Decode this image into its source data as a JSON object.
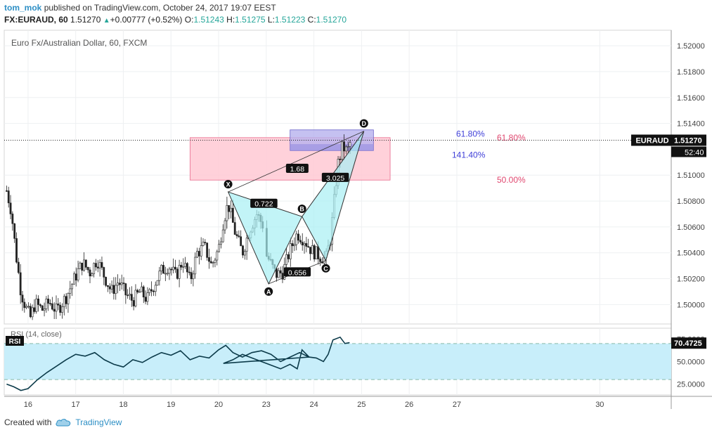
{
  "header": {
    "author": "tom_mok",
    "published_text": "published on TradingView.com, October 24, 2017 19:07 EEST",
    "symbol": "FX:EURAUD, 60",
    "last": "1.51270",
    "change": "+0.00777 (+0.52%)",
    "o_label": "O:",
    "o_value": "1.51243",
    "h_label": "H:",
    "h_value": "1.51275",
    "l_label": "L:",
    "l_value": "1.51223",
    "c_label": "C:",
    "c_value": "1.51270"
  },
  "footer": {
    "created_with": "Created with",
    "brand": "TradingView"
  },
  "colors": {
    "up": "#26a69a",
    "accent": "#2d8fc5",
    "pattern_fill": "#a8f0f4",
    "pink_zone": "#ffc9d4",
    "purple_zone": "#b7b2ee",
    "fib_pink": "#e0476f",
    "fib_blue": "#3f3fd8",
    "rsi_band": "#c8eefa"
  },
  "chart_data": {
    "type": "candlestick",
    "title": "Euro Fx/Australian Dollar, 60, FXCM",
    "price_axis": {
      "range": [
        1.4985,
        1.5212
      ],
      "ticks": [
        "1.52000",
        "1.51800",
        "1.51600",
        "1.51400",
        "1.51270",
        "1.51000",
        "1.50800",
        "1.50600",
        "1.50400",
        "1.50200",
        "1.50000"
      ]
    },
    "time_axis": {
      "range_days": [
        15.5,
        31.5
      ],
      "ticks": [
        {
          "x": 16,
          "label": "16"
        },
        {
          "x": 17,
          "label": "17"
        },
        {
          "x": 18,
          "label": "18"
        },
        {
          "x": 19,
          "label": "19"
        },
        {
          "x": 20,
          "label": "20"
        },
        {
          "x": 23,
          "label": "23"
        },
        {
          "x": 24,
          "label": "24"
        },
        {
          "x": 25,
          "label": "25"
        },
        {
          "x": 26,
          "label": "26"
        },
        {
          "x": 27,
          "label": "27"
        },
        {
          "x": 30,
          "label": "30"
        }
      ]
    },
    "current_price": {
      "label": "EURAUD",
      "value": "1.51270",
      "countdown": "52:40"
    },
    "price_series": [
      [
        15.55,
        1.5088
      ],
      [
        15.65,
        1.5072
      ],
      [
        15.75,
        1.5038
      ],
      [
        15.85,
        1.501
      ],
      [
        15.95,
        1.4998
      ],
      [
        16.05,
        1.499
      ],
      [
        16.15,
        1.5001
      ],
      [
        16.3,
        1.4996
      ],
      [
        16.45,
        1.5002
      ],
      [
        16.6,
        1.4995
      ],
      [
        16.8,
        1.5006
      ],
      [
        16.95,
        1.5018
      ],
      [
        17.05,
        1.5026
      ],
      [
        17.15,
        1.5032
      ],
      [
        17.3,
        1.5025
      ],
      [
        17.45,
        1.5035
      ],
      [
        17.6,
        1.5022
      ],
      [
        17.75,
        1.501
      ],
      [
        17.9,
        1.5018
      ],
      [
        18.05,
        1.5008
      ],
      [
        18.2,
        1.5003
      ],
      [
        18.35,
        1.501
      ],
      [
        18.5,
        1.5004
      ],
      [
        18.65,
        1.5016
      ],
      [
        18.8,
        1.5026
      ],
      [
        18.95,
        1.503
      ],
      [
        19.1,
        1.5022
      ],
      [
        19.25,
        1.5034
      ],
      [
        19.4,
        1.5018
      ],
      [
        19.55,
        1.504
      ],
      [
        19.7,
        1.5045
      ],
      [
        19.85,
        1.503
      ],
      [
        20.0,
        1.5043
      ],
      [
        20.1,
        1.5065
      ],
      [
        20.2,
        1.5078
      ],
      [
        20.35,
        1.5055
      ],
      [
        20.5,
        1.504
      ],
      [
        20.65,
        1.5058
      ],
      [
        20.8,
        1.507
      ],
      [
        20.95,
        1.506
      ],
      [
        21.1,
        1.505
      ],
      [
        21.25,
        1.504
      ],
      [
        21.4,
        1.5027
      ],
      [
        21.55,
        1.5036
      ],
      [
        21.7,
        1.504
      ],
      [
        21.85,
        1.505
      ],
      [
        22.0,
        1.5062
      ],
      [
        22.15,
        1.5056
      ],
      [
        22.3,
        1.5042
      ],
      [
        22.45,
        1.505
      ],
      [
        22.6,
        1.504
      ],
      [
        22.75,
        1.5033
      ],
      [
        22.9,
        1.5045
      ],
      [
        23.05,
        1.5035
      ],
      [
        23.2,
        1.5023
      ],
      [
        23.35,
        1.5025
      ],
      [
        23.5,
        1.5042
      ],
      [
        23.65,
        1.5055
      ],
      [
        23.8,
        1.505
      ],
      [
        23.95,
        1.5042
      ],
      [
        24.1,
        1.5038
      ],
      [
        24.25,
        1.5035
      ],
      [
        24.35,
        1.5052
      ],
      [
        24.42,
        1.5078
      ],
      [
        24.5,
        1.5108
      ],
      [
        24.6,
        1.5122
      ],
      [
        24.7,
        1.5118
      ],
      [
        24.78,
        1.5127
      ]
    ],
    "harmonic_pattern": {
      "points": [
        {
          "label": "X",
          "x": 20.2,
          "y": 1.5087
        },
        {
          "label": "A",
          "x": 23.05,
          "y": 1.5016
        },
        {
          "label": "B",
          "x": 23.75,
          "y": 1.5068
        },
        {
          "label": "C",
          "x": 24.25,
          "y": 1.5034
        },
        {
          "label": "D",
          "x": 25.05,
          "y": 1.5134
        }
      ],
      "ratios": [
        {
          "text": "0.722",
          "x": 22.95,
          "y": 1.5078
        },
        {
          "text": "0.656",
          "x": 23.65,
          "y": 1.5025
        },
        {
          "text": "1.68",
          "x": 23.65,
          "y": 1.5105
        },
        {
          "text": "3.025",
          "x": 24.45,
          "y": 1.5098
        }
      ]
    },
    "zones": [
      {
        "name": "pink",
        "x": [
          19.4,
          25.6
        ],
        "y": [
          1.50962,
          1.5129
        ],
        "levels": [
          {
            "text": "61.80%",
            "y": 1.5129
          },
          {
            "text": "50.00%",
            "y": 1.50962
          }
        ]
      },
      {
        "name": "purple",
        "x": [
          23.5,
          25.25
        ],
        "y": [
          1.5119,
          1.5135
        ],
        "levels": [
          {
            "text": "61.80%",
            "y": 1.5132
          },
          {
            "text": "141.40%",
            "y": 1.51155
          }
        ]
      }
    ],
    "rsi": {
      "label": "RSI (14, close)",
      "tag": "RSI",
      "value": "70.4725",
      "range": [
        13,
        87
      ],
      "ticks": [
        "75.0000",
        "50.0000",
        "25.0000"
      ],
      "band": [
        30,
        70
      ],
      "series": [
        [
          15.55,
          25
        ],
        [
          15.7,
          22
        ],
        [
          15.85,
          18
        ],
        [
          16.0,
          20
        ],
        [
          16.2,
          30
        ],
        [
          16.4,
          38
        ],
        [
          16.6,
          45
        ],
        [
          16.8,
          52
        ],
        [
          17.0,
          58
        ],
        [
          17.2,
          56
        ],
        [
          17.4,
          60
        ],
        [
          17.6,
          52
        ],
        [
          17.8,
          47
        ],
        [
          18.0,
          44
        ],
        [
          18.2,
          52
        ],
        [
          18.4,
          49
        ],
        [
          18.6,
          55
        ],
        [
          18.8,
          60
        ],
        [
          19.0,
          57
        ],
        [
          19.2,
          62
        ],
        [
          19.4,
          52
        ],
        [
          19.6,
          56
        ],
        [
          19.8,
          54
        ],
        [
          20.0,
          63
        ],
        [
          20.15,
          68
        ],
        [
          20.3,
          60
        ],
        [
          20.5,
          55
        ],
        [
          20.7,
          60
        ],
        [
          20.9,
          62
        ],
        [
          21.1,
          58
        ],
        [
          21.3,
          50
        ],
        [
          21.5,
          55
        ],
        [
          21.7,
          60
        ],
        [
          21.9,
          55
        ],
        [
          22.1,
          48
        ],
        [
          22.3,
          52
        ],
        [
          22.5,
          58
        ],
        [
          22.7,
          54
        ],
        [
          22.9,
          50
        ],
        [
          23.1,
          46
        ],
        [
          23.3,
          42
        ],
        [
          23.5,
          47
        ],
        [
          23.65,
          42
        ],
        [
          23.75,
          63
        ],
        [
          23.9,
          55
        ],
        [
          24.05,
          54
        ],
        [
          24.2,
          50
        ],
        [
          24.3,
          58
        ],
        [
          24.4,
          74
        ],
        [
          24.55,
          77
        ],
        [
          24.65,
          70
        ],
        [
          24.75,
          71
        ]
      ]
    }
  }
}
